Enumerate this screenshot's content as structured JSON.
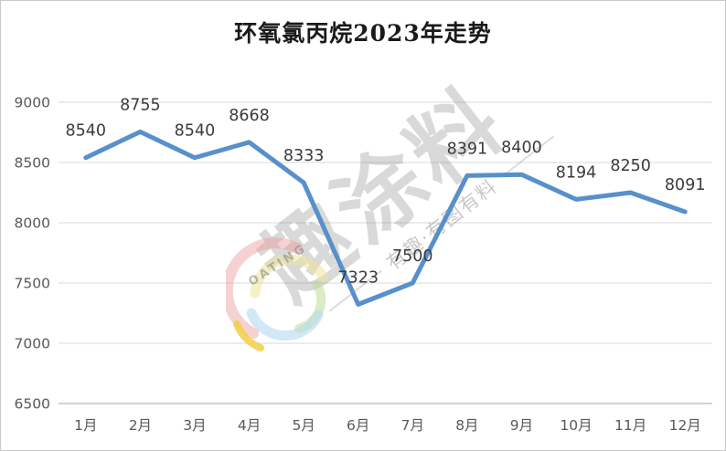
{
  "chart_data": {
    "type": "line",
    "title": "环氧氯丙烷2023年走势",
    "categories": [
      "1月",
      "2月",
      "3月",
      "4月",
      "5月",
      "6月",
      "7月",
      "8月",
      "9月",
      "10月",
      "11月",
      "12月"
    ],
    "values": [
      8540,
      8755,
      8540,
      8668,
      8333,
      7323,
      7500,
      8391,
      8400,
      8194,
      8250,
      8091
    ],
    "ylim": [
      6500,
      9000
    ],
    "yticks": [
      6500,
      7000,
      7500,
      8000,
      8500,
      9000
    ],
    "grid": true,
    "legend": "none",
    "data_labels": true,
    "xlabel": "",
    "ylabel": "",
    "colors": {
      "line": "#5790cb",
      "grid": "#d9d9d9",
      "axis": "#c3c3c3",
      "tick": "#595959",
      "label": "#3b3b3b"
    }
  },
  "watermark": {
    "big_text": "趣涂料",
    "subtitle": "有趣·有图有料",
    "logo_text": "OATING"
  }
}
